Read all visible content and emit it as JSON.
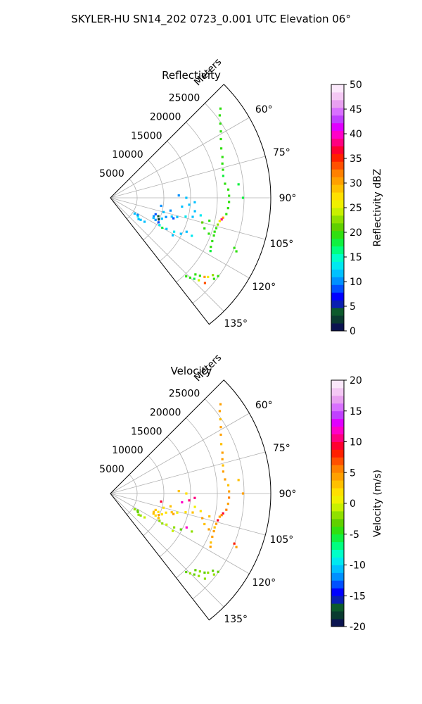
{
  "figure": {
    "suptitle": "SKYLER-HU  SN14_202  0723_0.001 UTC Elevation 06°"
  },
  "chart_data": [
    {
      "type": "scatter",
      "subtype": "polar-sector radar PPI",
      "title": "Reflectivity",
      "radial_label": "Meters",
      "r_ticks": [
        "5000",
        "10000",
        "15000",
        "20000",
        "25000"
      ],
      "r_range": [
        0,
        30000
      ],
      "theta_range": [
        45,
        142
      ],
      "theta_ticks": [
        "60°",
        "75°",
        "90°",
        "105°",
        "120°",
        "135°"
      ],
      "grid": true,
      "colorbar": {
        "label": "Reflectivity dBZ",
        "min": 0,
        "max": 50,
        "ticks": [
          "0",
          "5",
          "10",
          "15",
          "20",
          "25",
          "30",
          "35",
          "40",
          "45",
          "50"
        ],
        "colors": [
          "#0b1450",
          "#0a3a30",
          "#0c5a2c",
          "#0a1fb0",
          "#0000ff",
          "#0050ff",
          "#0090ff",
          "#00c0ff",
          "#00e8f0",
          "#00ffc8",
          "#00ff80",
          "#10f040",
          "#30e010",
          "#60d000",
          "#90e000",
          "#c8f000",
          "#f0f000",
          "#ffe000",
          "#ffc000",
          "#ffa000",
          "#ff8000",
          "#ff5000",
          "#ff2000",
          "#ff0030",
          "#ff0080",
          "#ff00c8",
          "#e000ff",
          "#c040ff",
          "#d870ff",
          "#e8a0f0",
          "#f4c8f4",
          "#fbe8fb"
        ]
      },
      "points": [
        {
          "az": 51,
          "r": 26500,
          "v": 20
        },
        {
          "az": 53,
          "r": 25600,
          "v": 20
        },
        {
          "az": 56,
          "r": 24800,
          "v": 19
        },
        {
          "az": 59,
          "r": 24100,
          "v": 19
        },
        {
          "az": 62,
          "r": 23400,
          "v": 20
        },
        {
          "az": 66,
          "r": 22700,
          "v": 19
        },
        {
          "az": 70,
          "r": 22300,
          "v": 20
        },
        {
          "az": 73,
          "r": 21900,
          "v": 19
        },
        {
          "az": 76,
          "r": 21700,
          "v": 20
        },
        {
          "az": 79,
          "r": 21500,
          "v": 18
        },
        {
          "az": 83,
          "r": 21600,
          "v": 20
        },
        {
          "az": 86,
          "r": 22100,
          "v": 19
        },
        {
          "az": 89,
          "r": 22200,
          "v": 20
        },
        {
          "az": 92,
          "r": 22200,
          "v": 19
        },
        {
          "az": 95,
          "r": 22100,
          "v": 20
        },
        {
          "az": 98,
          "r": 21900,
          "v": 19
        },
        {
          "az": 100,
          "r": 21400,
          "v": 30
        },
        {
          "az": 101,
          "r": 21200,
          "v": 38
        },
        {
          "az": 102,
          "r": 20900,
          "v": 28
        },
        {
          "az": 104,
          "r": 20700,
          "v": 22
        },
        {
          "az": 106,
          "r": 20600,
          "v": 20
        },
        {
          "az": 108,
          "r": 20500,
          "v": 19
        },
        {
          "az": 110,
          "r": 20600,
          "v": 20
        },
        {
          "az": 113,
          "r": 20700,
          "v": 19
        },
        {
          "az": 116,
          "r": 20900,
          "v": 20
        },
        {
          "az": 118,
          "r": 21200,
          "v": 18
        },
        {
          "az": 112,
          "r": 25000,
          "v": 20
        },
        {
          "az": 113,
          "r": 25600,
          "v": 19
        },
        {
          "az": 84,
          "r": 24100,
          "v": 18
        },
        {
          "az": 90,
          "r": 24800,
          "v": 18
        },
        {
          "az": 127,
          "r": 24000,
          "v": 22
        },
        {
          "az": 129,
          "r": 23500,
          "v": 26
        },
        {
          "az": 130,
          "r": 23000,
          "v": 30
        },
        {
          "az": 131,
          "r": 22200,
          "v": 20
        },
        {
          "az": 132,
          "r": 21400,
          "v": 19
        },
        {
          "az": 133,
          "r": 22600,
          "v": 24
        },
        {
          "az": 134,
          "r": 21800,
          "v": 18
        },
        {
          "az": 135,
          "r": 21100,
          "v": 20
        },
        {
          "az": 136,
          "r": 20400,
          "v": 19
        },
        {
          "az": 128,
          "r": 24600,
          "v": 20
        },
        {
          "az": 126,
          "r": 24900,
          "v": 19
        },
        {
          "az": 132,
          "r": 23800,
          "v": 33
        },
        {
          "az": 110,
          "r": 9000,
          "v": 8
        },
        {
          "az": 111,
          "r": 9600,
          "v": 4
        },
        {
          "az": 113,
          "r": 8800,
          "v": 10
        },
        {
          "az": 114,
          "r": 9900,
          "v": 2
        },
        {
          "az": 112,
          "r": 10400,
          "v": 11
        },
        {
          "az": 115,
          "r": 8900,
          "v": 12
        },
        {
          "az": 116,
          "r": 9400,
          "v": 10
        },
        {
          "az": 117,
          "r": 10100,
          "v": 9
        },
        {
          "az": 109,
          "r": 11000,
          "v": 10
        },
        {
          "az": 107,
          "r": 12000,
          "v": 11
        },
        {
          "az": 106,
          "r": 13000,
          "v": 12
        },
        {
          "az": 104,
          "r": 14500,
          "v": 13
        },
        {
          "az": 103,
          "r": 15800,
          "v": 12
        },
        {
          "az": 101,
          "r": 17200,
          "v": 13
        },
        {
          "az": 99,
          "r": 16000,
          "v": 11
        },
        {
          "az": 102,
          "r": 11500,
          "v": 10
        },
        {
          "az": 105,
          "r": 10300,
          "v": 12
        },
        {
          "az": 108,
          "r": 12400,
          "v": 9
        },
        {
          "az": 99,
          "r": 9600,
          "v": 10
        },
        {
          "az": 97,
          "r": 13500,
          "v": 12
        },
        {
          "az": 95,
          "r": 14800,
          "v": 11
        },
        {
          "az": 123,
          "r": 5400,
          "v": 12
        },
        {
          "az": 124,
          "r": 6200,
          "v": 13
        },
        {
          "az": 126,
          "r": 7000,
          "v": 12
        },
        {
          "az": 125,
          "r": 7800,
          "v": 11
        },
        {
          "az": 127,
          "r": 6600,
          "v": 12
        },
        {
          "az": 122,
          "r": 6000,
          "v": 10
        },
        {
          "az": 119,
          "r": 10500,
          "v": 13
        },
        {
          "az": 119,
          "r": 12000,
          "v": 12
        },
        {
          "az": 118,
          "r": 13500,
          "v": 13
        },
        {
          "az": 117,
          "r": 14800,
          "v": 12
        },
        {
          "az": 120,
          "r": 11200,
          "v": 18
        },
        {
          "az": 121,
          "r": 13600,
          "v": 12
        },
        {
          "az": 115,
          "r": 16800,
          "v": 13
        },
        {
          "az": 114,
          "r": 15600,
          "v": 12
        },
        {
          "az": 108,
          "r": 18500,
          "v": 20
        },
        {
          "az": 105,
          "r": 17800,
          "v": 21
        },
        {
          "az": 103,
          "r": 19000,
          "v": 20
        },
        {
          "az": 110,
          "r": 19600,
          "v": 19
        },
        {
          "az": 90,
          "r": 14200,
          "v": 12
        },
        {
          "az": 93,
          "r": 15800,
          "v": 12
        },
        {
          "az": 88,
          "r": 12800,
          "v": 10
        }
      ]
    },
    {
      "type": "scatter",
      "subtype": "polar-sector radar PPI",
      "title": "Velocity",
      "radial_label": "Meters",
      "r_ticks": [
        "5000",
        "10000",
        "15000",
        "20000",
        "25000"
      ],
      "r_range": [
        0,
        30000
      ],
      "theta_range": [
        45,
        142
      ],
      "theta_ticks": [
        "60°",
        "75°",
        "90°",
        "105°",
        "120°",
        "135°"
      ],
      "grid": true,
      "colorbar": {
        "label": "Velocity (m/s)",
        "min": -20,
        "max": 20,
        "ticks": [
          "-20",
          "-15",
          "-10",
          "-5",
          "0",
          "5",
          "10",
          "15",
          "20"
        ],
        "colors": [
          "#0b1450",
          "#0a3a30",
          "#0c5a2c",
          "#0a1fb0",
          "#0000ff",
          "#0050ff",
          "#0090ff",
          "#00c0ff",
          "#00e8f0",
          "#00ffc8",
          "#00ff80",
          "#10f040",
          "#30e010",
          "#60d000",
          "#90e000",
          "#c8f000",
          "#f0f000",
          "#ffe000",
          "#ffc000",
          "#ffa000",
          "#ff8000",
          "#ff5000",
          "#ff2000",
          "#ff0030",
          "#ff0080",
          "#ff00c8",
          "#e000ff",
          "#c040ff",
          "#d870ff",
          "#e8a0f0",
          "#f4c8f4",
          "#fbe8fb"
        ]
      },
      "points": [
        {
          "az": 51,
          "r": 26500,
          "v": 4
        },
        {
          "az": 53,
          "r": 25600,
          "v": 4
        },
        {
          "az": 56,
          "r": 24800,
          "v": 3
        },
        {
          "az": 59,
          "r": 24100,
          "v": 4
        },
        {
          "az": 62,
          "r": 23400,
          "v": 4
        },
        {
          "az": 66,
          "r": 22700,
          "v": 3
        },
        {
          "az": 70,
          "r": 22300,
          "v": 4
        },
        {
          "az": 73,
          "r": 21900,
          "v": 4
        },
        {
          "az": 76,
          "r": 21700,
          "v": 3
        },
        {
          "az": 79,
          "r": 21500,
          "v": 4
        },
        {
          "az": 83,
          "r": 21600,
          "v": 4
        },
        {
          "az": 86,
          "r": 22100,
          "v": 3
        },
        {
          "az": 89,
          "r": 22200,
          "v": 4
        },
        {
          "az": 92,
          "r": 22200,
          "v": 5
        },
        {
          "az": 95,
          "r": 22100,
          "v": 4
        },
        {
          "az": 98,
          "r": 21900,
          "v": 6
        },
        {
          "az": 100,
          "r": 21400,
          "v": 9
        },
        {
          "az": 101,
          "r": 21200,
          "v": 5
        },
        {
          "az": 102,
          "r": 20900,
          "v": 4
        },
        {
          "az": 104,
          "r": 20700,
          "v": 9
        },
        {
          "az": 106,
          "r": 20600,
          "v": 4
        },
        {
          "az": 108,
          "r": 20500,
          "v": 3
        },
        {
          "az": 110,
          "r": 20600,
          "v": 4
        },
        {
          "az": 113,
          "r": 20700,
          "v": 4
        },
        {
          "az": 116,
          "r": 20900,
          "v": 3
        },
        {
          "az": 118,
          "r": 21200,
          "v": 4
        },
        {
          "az": 112,
          "r": 25000,
          "v": 8
        },
        {
          "az": 113,
          "r": 25600,
          "v": 4
        },
        {
          "az": 84,
          "r": 24100,
          "v": 3
        },
        {
          "az": 90,
          "r": 24800,
          "v": 4
        },
        {
          "az": 127,
          "r": 24000,
          "v": -3
        },
        {
          "az": 129,
          "r": 23500,
          "v": -2
        },
        {
          "az": 130,
          "r": 23000,
          "v": -3
        },
        {
          "az": 131,
          "r": 22200,
          "v": -2
        },
        {
          "az": 132,
          "r": 21400,
          "v": -3
        },
        {
          "az": 133,
          "r": 22600,
          "v": -2
        },
        {
          "az": 134,
          "r": 21800,
          "v": -3
        },
        {
          "az": 135,
          "r": 21100,
          "v": -2
        },
        {
          "az": 136,
          "r": 20400,
          "v": -3
        },
        {
          "az": 128,
          "r": 24600,
          "v": -2
        },
        {
          "az": 126,
          "r": 24900,
          "v": -3
        },
        {
          "az": 132,
          "r": 23800,
          "v": -2
        },
        {
          "az": 110,
          "r": 9000,
          "v": 3
        },
        {
          "az": 111,
          "r": 9600,
          "v": 2
        },
        {
          "az": 113,
          "r": 8800,
          "v": 3
        },
        {
          "az": 114,
          "r": 9900,
          "v": 4
        },
        {
          "az": 112,
          "r": 10400,
          "v": 2
        },
        {
          "az": 115,
          "r": 8900,
          "v": 3
        },
        {
          "az": 116,
          "r": 9400,
          "v": 2
        },
        {
          "az": 117,
          "r": 10100,
          "v": 3
        },
        {
          "az": 109,
          "r": 11000,
          "v": 2
        },
        {
          "az": 107,
          "r": 12000,
          "v": 3
        },
        {
          "az": 106,
          "r": 13000,
          "v": 1
        },
        {
          "az": 104,
          "r": 14500,
          "v": 2
        },
        {
          "az": 103,
          "r": 15800,
          "v": 3
        },
        {
          "az": 101,
          "r": 17200,
          "v": 2
        },
        {
          "az": 99,
          "r": 16000,
          "v": 1
        },
        {
          "az": 102,
          "r": 11500,
          "v": 3
        },
        {
          "az": 105,
          "r": 10300,
          "v": 2
        },
        {
          "az": 108,
          "r": 12400,
          "v": 4
        },
        {
          "az": 99,
          "r": 9600,
          "v": 9
        },
        {
          "az": 97,
          "r": 13500,
          "v": 12
        },
        {
          "az": 95,
          "r": 14800,
          "v": 10
        },
        {
          "az": 123,
          "r": 5400,
          "v": -2
        },
        {
          "az": 124,
          "r": 6200,
          "v": -3
        },
        {
          "az": 126,
          "r": 7000,
          "v": -2
        },
        {
          "az": 125,
          "r": 7800,
          "v": -1
        },
        {
          "az": 127,
          "r": 6600,
          "v": -2
        },
        {
          "az": 122,
          "r": 6000,
          "v": -3
        },
        {
          "az": 119,
          "r": 10500,
          "v": -2
        },
        {
          "az": 119,
          "r": 12000,
          "v": -1
        },
        {
          "az": 118,
          "r": 13500,
          "v": -2
        },
        {
          "az": 117,
          "r": 14800,
          "v": -3
        },
        {
          "az": 120,
          "r": 11200,
          "v": -2
        },
        {
          "az": 121,
          "r": 13600,
          "v": -1
        },
        {
          "az": 115,
          "r": 16800,
          "v": -2
        },
        {
          "az": 114,
          "r": 15600,
          "v": 12
        },
        {
          "az": 108,
          "r": 18500,
          "v": 3
        },
        {
          "az": 105,
          "r": 17800,
          "v": 4
        },
        {
          "az": 103,
          "r": 19000,
          "v": 3
        },
        {
          "az": 110,
          "r": 19600,
          "v": 4
        },
        {
          "az": 90,
          "r": 14200,
          "v": 2
        },
        {
          "az": 93,
          "r": 15800,
          "v": 11
        },
        {
          "az": 88,
          "r": 12800,
          "v": 3
        }
      ]
    }
  ]
}
